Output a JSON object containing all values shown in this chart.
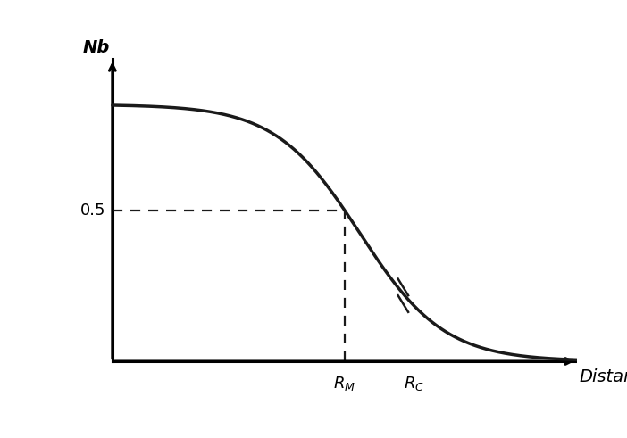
{
  "title": "",
  "xlabel": "Distance",
  "ylabel": "Nb",
  "curve_color": "#1a1a1a",
  "curve_linewidth": 2.5,
  "dashed_color": "#1a1a1a",
  "dashed_linewidth": 1.6,
  "background_color": "#ffffff",
  "y_max": 1.0,
  "y_min": 0.0,
  "x_max": 10.0,
  "x_min": 0.0,
  "plateau_value": 0.85,
  "RM": 5.0,
  "RC": 6.5,
  "sigmoid_steepness": 1.1,
  "axis_linewidth": 2.2,
  "label_fontsize": 14
}
